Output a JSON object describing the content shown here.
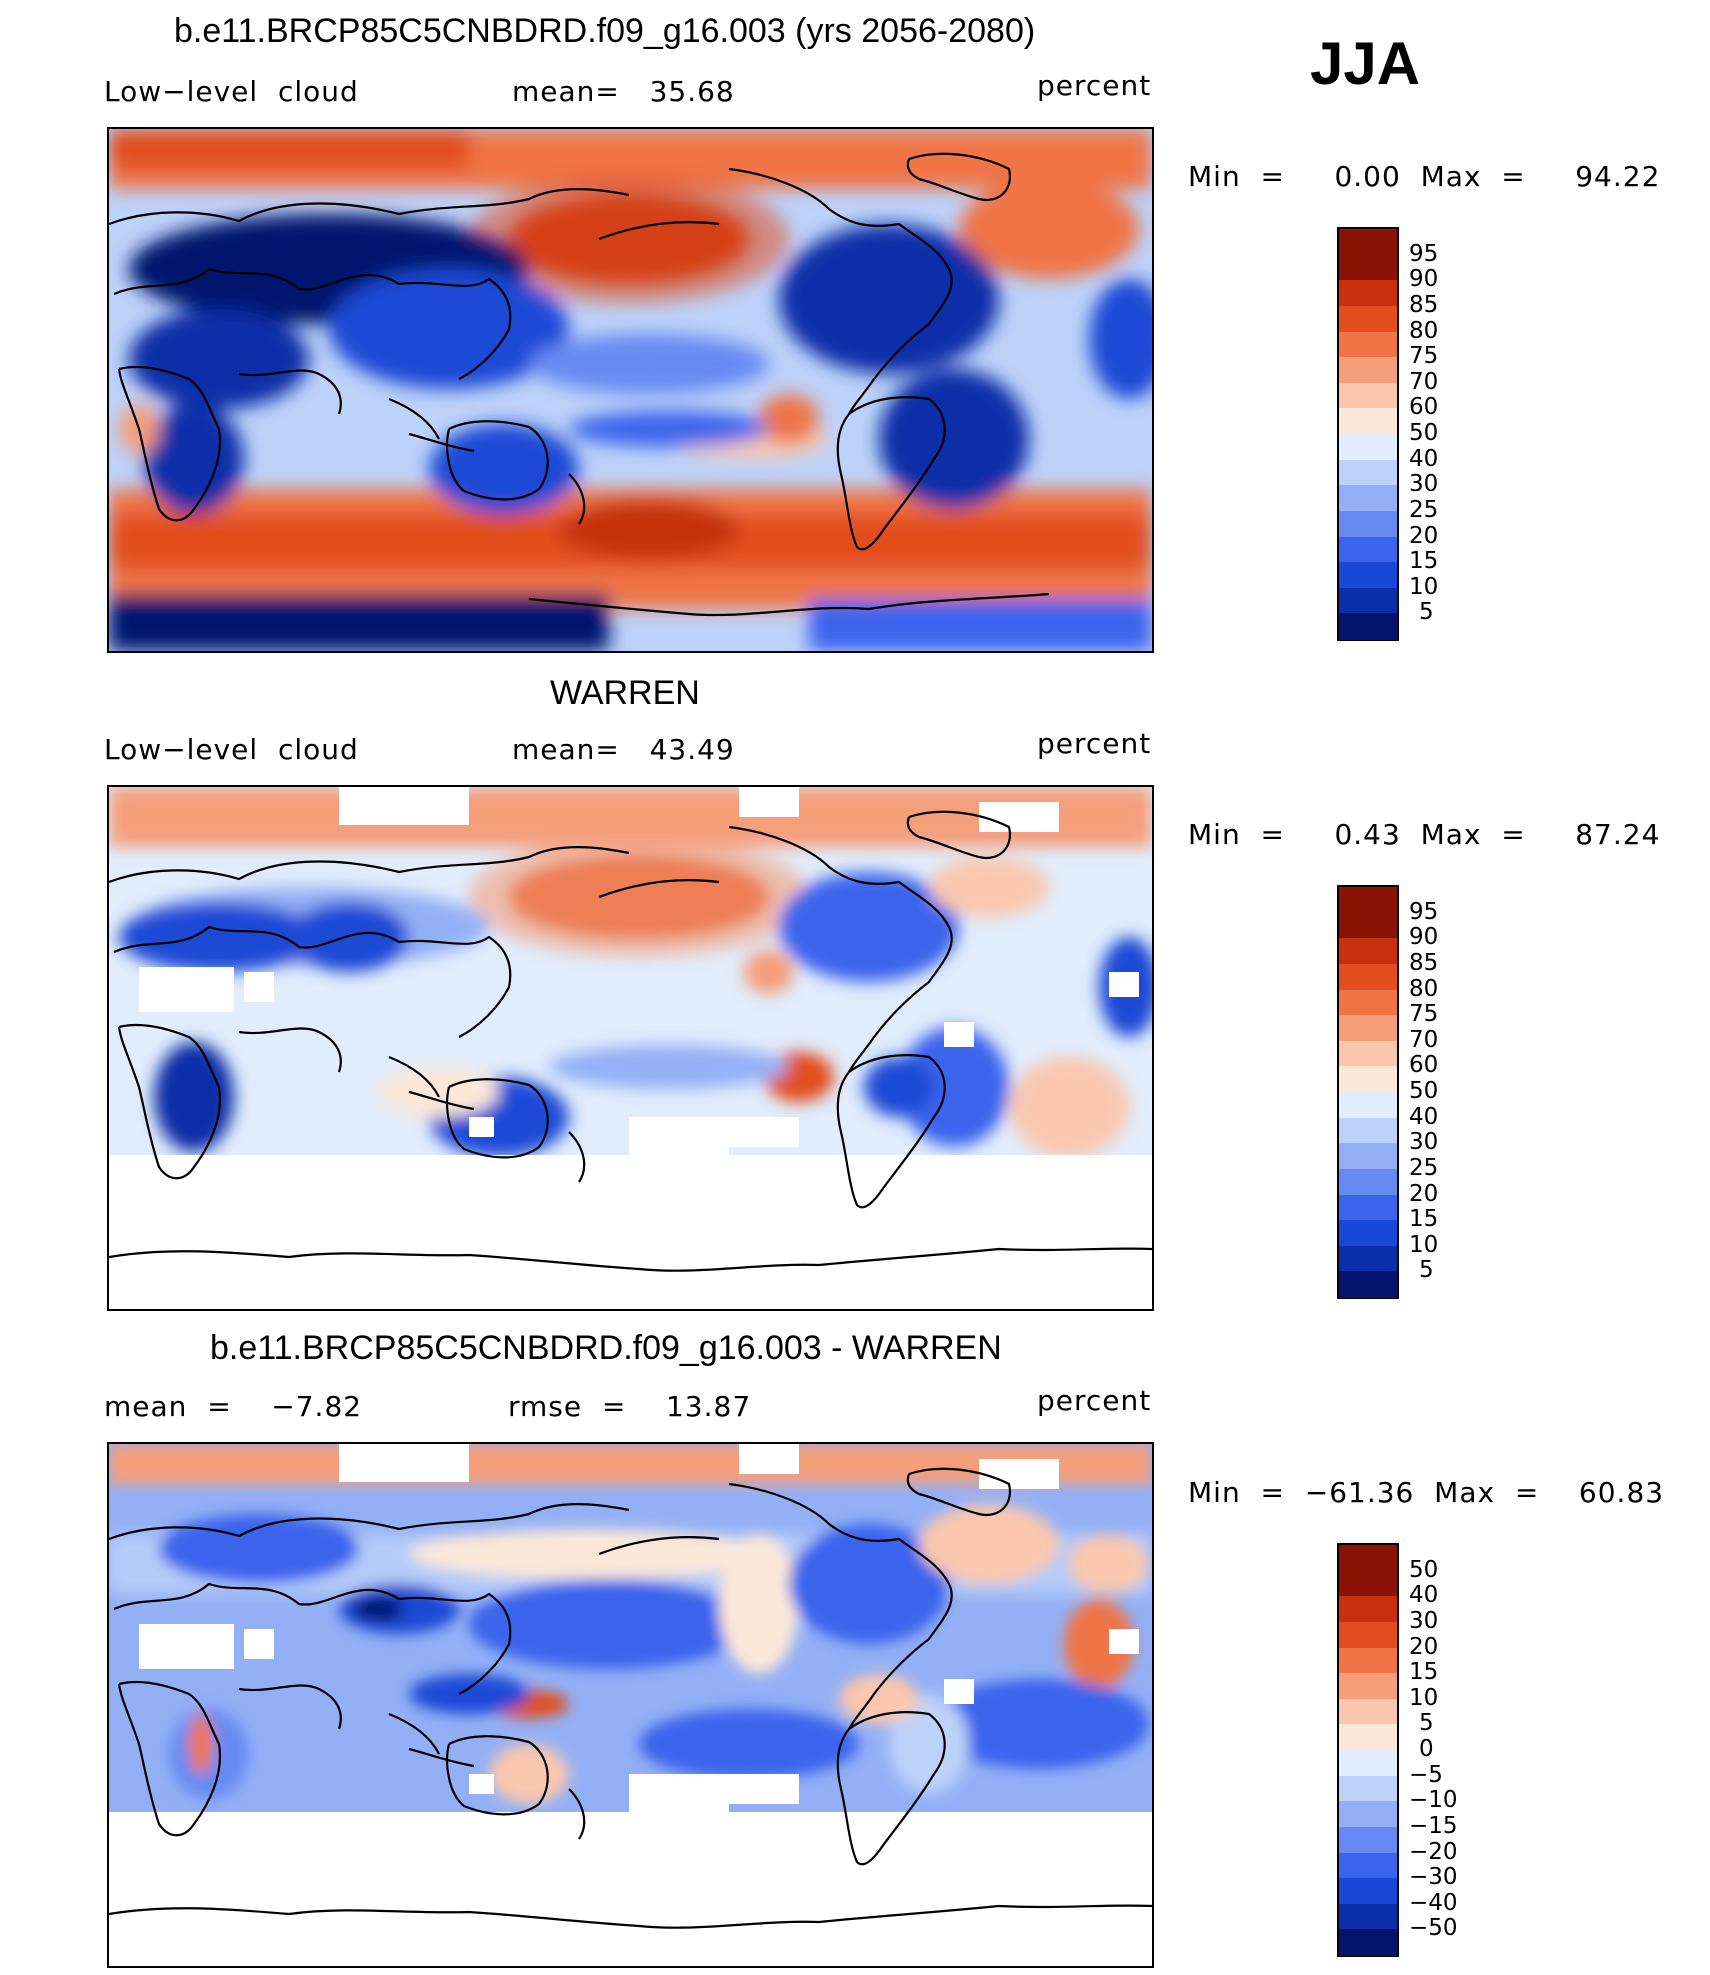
{
  "season": "JJA",
  "colors": {
    "palette_11": [
      "#04136e",
      "#0a2fa8",
      "#1a48d6",
      "#3a64ec",
      "#668af2",
      "#93b0f6",
      "#bdd2f9",
      "#e1ecfc",
      "#fce8d8",
      "#fac7ae",
      "#f59e7a",
      "#ef7447",
      "#e24e1f",
      "#c6300e",
      "#8a1305"
    ],
    "palette_diff": [
      "#04136e",
      "#0a2fa8",
      "#1a48d6",
      "#3a64ec",
      "#668af2",
      "#93b0f6",
      "#bdd2f9",
      "#e1ecfc",
      "#fce8d8",
      "#fac7ae",
      "#f59e7a",
      "#ef7447",
      "#e24e1f",
      "#c6300e",
      "#8a1305"
    ]
  },
  "panels": [
    {
      "id": "model",
      "title": "b.e11.BRCP85C5CNBDRD.f09_g16.003 (yrs 2056-2080)",
      "left_label": "Low−level  cloud",
      "mid_label": "mean=   35.68",
      "right_label": "percent",
      "minmax": "Min  =     0.00  Max  =     94.22",
      "colorbar_ticks": [
        "95",
        "90",
        "85",
        "80",
        "75",
        "70",
        "60",
        "50",
        "40",
        "30",
        "25",
        "20",
        "15",
        "10",
        "5"
      ],
      "masked": false,
      "mean_value": 35.68,
      "min_value": 0.0,
      "max_value": 94.22
    },
    {
      "id": "obs",
      "title": "WARREN",
      "left_label": "Low−level  cloud",
      "mid_label": "mean=   43.49",
      "right_label": "percent",
      "minmax": "Min  =     0.43  Max  =     87.24",
      "colorbar_ticks": [
        "95",
        "90",
        "85",
        "80",
        "75",
        "70",
        "60",
        "50",
        "40",
        "30",
        "25",
        "20",
        "15",
        "10",
        "5"
      ],
      "masked": true,
      "mean_value": 43.49,
      "min_value": 0.43,
      "max_value": 87.24
    },
    {
      "id": "diff",
      "title": "b.e11.BRCP85C5CNBDRD.f09_g16.003 - WARREN",
      "left_label": "mean  =    −7.82",
      "mid_label": "rmse  =    13.87",
      "right_label": "percent",
      "minmax": "Min  =  −61.36  Max  =    60.83",
      "colorbar_ticks": [
        "50",
        "40",
        "30",
        "20",
        "15",
        "10",
        "5",
        "0",
        "−5",
        "−10",
        "−15",
        "−20",
        "−30",
        "−40",
        "−50"
      ],
      "masked": true,
      "mean_value": -7.82,
      "rmse_value": 13.87,
      "min_value": -61.36,
      "max_value": 60.83
    }
  ]
}
